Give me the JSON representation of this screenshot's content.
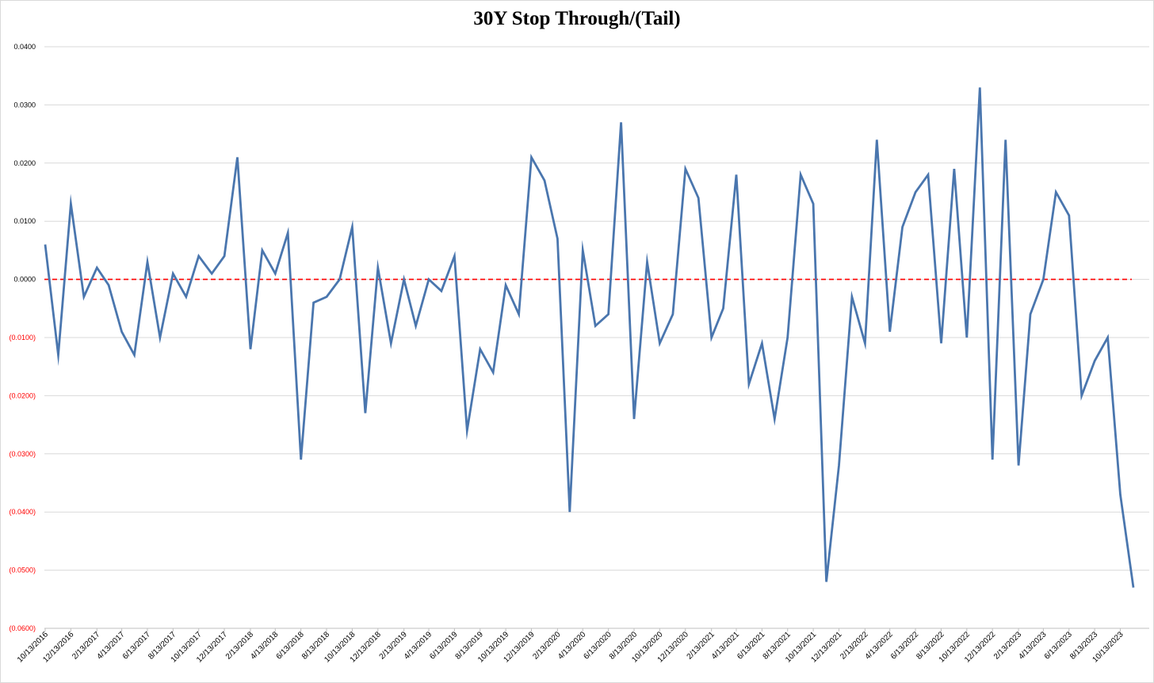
{
  "chart_data": {
    "type": "line",
    "title": "30Y Stop Through/(Tail)",
    "xlabel": "",
    "ylabel": "",
    "ylim": [
      -0.06,
      0.04
    ],
    "grid": true,
    "y_ticks": [
      {
        "value": 0.04,
        "label": "0.0400"
      },
      {
        "value": 0.03,
        "label": "0.0300"
      },
      {
        "value": 0.02,
        "label": "0.0200"
      },
      {
        "value": 0.01,
        "label": "0.0100"
      },
      {
        "value": 0.0,
        "label": "0.0000"
      },
      {
        "value": -0.01,
        "label": "(0.0100)"
      },
      {
        "value": -0.02,
        "label": "(0.0200)"
      },
      {
        "value": -0.03,
        "label": "(0.0300)"
      },
      {
        "value": -0.04,
        "label": "(0.0400)"
      },
      {
        "value": -0.05,
        "label": "(0.0500)"
      },
      {
        "value": -0.06,
        "label": "(0.0600)"
      }
    ],
    "x_tick_labels": [
      "10/13/2016",
      "12/13/2016",
      "2/13/2017",
      "4/13/2017",
      "6/13/2017",
      "8/13/2017",
      "10/13/2017",
      "12/13/2017",
      "2/13/2018",
      "4/13/2018",
      "6/13/2018",
      "8/13/2018",
      "10/13/2018",
      "12/13/2018",
      "2/13/2019",
      "4/13/2019",
      "6/13/2019",
      "8/13/2019",
      "10/13/2019",
      "12/13/2019",
      "2/13/2020",
      "4/13/2020",
      "6/13/2020",
      "8/13/2020",
      "10/13/2020",
      "12/13/2020",
      "2/13/2021",
      "4/13/2021",
      "6/13/2021",
      "8/13/2021",
      "10/13/2021",
      "12/13/2021",
      "2/13/2022",
      "4/13/2022",
      "6/13/2022",
      "8/13/2022",
      "10/13/2022",
      "12/13/2022",
      "2/13/2023",
      "4/13/2023",
      "6/13/2023",
      "8/13/2023",
      "10/13/2023"
    ],
    "x_range": [
      "10/13/2016",
      "11/13/2023"
    ],
    "series": [
      {
        "name": "",
        "color": "#4a76ae",
        "x": [
          "10/13/2016",
          "11/13/2016",
          "12/13/2016",
          "1/13/2017",
          "2/13/2017",
          "3/13/2017",
          "4/13/2017",
          "5/13/2017",
          "6/13/2017",
          "7/13/2017",
          "8/13/2017",
          "9/13/2017",
          "10/13/2017",
          "11/13/2017",
          "12/13/2017",
          "1/13/2018",
          "2/13/2018",
          "3/13/2018",
          "4/13/2018",
          "5/13/2018",
          "6/13/2018",
          "7/13/2018",
          "8/13/2018",
          "9/13/2018",
          "10/13/2018",
          "11/13/2018",
          "12/13/2018",
          "1/13/2019",
          "2/13/2019",
          "3/13/2019",
          "4/13/2019",
          "5/13/2019",
          "6/13/2019",
          "7/13/2019",
          "8/13/2019",
          "9/13/2019",
          "10/13/2019",
          "11/13/2019",
          "12/13/2019",
          "1/13/2020",
          "2/13/2020",
          "3/13/2020",
          "4/13/2020",
          "5/13/2020",
          "6/13/2020",
          "7/13/2020",
          "8/13/2020",
          "9/13/2020",
          "10/13/2020",
          "11/13/2020",
          "12/13/2020",
          "1/13/2021",
          "2/13/2021",
          "3/13/2021",
          "4/13/2021",
          "5/13/2021",
          "6/13/2021",
          "7/13/2021",
          "8/13/2021",
          "9/13/2021",
          "10/13/2021",
          "11/13/2021",
          "12/13/2021",
          "1/13/2022",
          "2/13/2022",
          "3/13/2022",
          "4/13/2022",
          "5/13/2022",
          "6/13/2022",
          "7/13/2022",
          "8/13/2022",
          "9/13/2022",
          "10/13/2022",
          "11/13/2022",
          "12/13/2022",
          "1/13/2023",
          "2/13/2023",
          "3/13/2023",
          "4/13/2023",
          "5/13/2023",
          "6/13/2023",
          "7/13/2023",
          "8/13/2023",
          "9/13/2023",
          "10/13/2023",
          "11/13/2023"
        ],
        "values": [
          0.006,
          -0.013,
          0.013,
          -0.003,
          0.002,
          -0.001,
          -0.009,
          -0.013,
          0.003,
          -0.01,
          0.001,
          -0.003,
          0.004,
          0.001,
          0.004,
          0.021,
          -0.012,
          0.005,
          0.001,
          0.008,
          -0.031,
          -0.004,
          -0.003,
          0.0,
          0.009,
          -0.023,
          0.002,
          -0.011,
          0.0,
          -0.008,
          0.0,
          -0.002,
          0.004,
          -0.026,
          -0.012,
          -0.016,
          -0.001,
          -0.006,
          0.021,
          0.017,
          0.007,
          -0.04,
          0.005,
          -0.008,
          -0.006,
          0.027,
          -0.024,
          0.003,
          -0.011,
          -0.006,
          0.019,
          0.014,
          -0.01,
          -0.005,
          0.018,
          -0.018,
          -0.011,
          -0.024,
          -0.01,
          0.018,
          0.013,
          -0.052,
          -0.032,
          -0.003,
          -0.011,
          0.024,
          -0.009,
          0.009,
          0.015,
          0.018,
          -0.011,
          0.019,
          -0.01,
          0.033,
          -0.031,
          0.024,
          -0.032,
          -0.006,
          0.0,
          0.015,
          0.011,
          -0.02,
          -0.014,
          -0.01,
          -0.037,
          -0.053
        ]
      }
    ],
    "reference_line": {
      "value": 0.0,
      "color": "#ff0000",
      "style": "dashed"
    },
    "tick_label_colors": {
      "positive": "#000000",
      "negative": "#ff0000"
    }
  }
}
